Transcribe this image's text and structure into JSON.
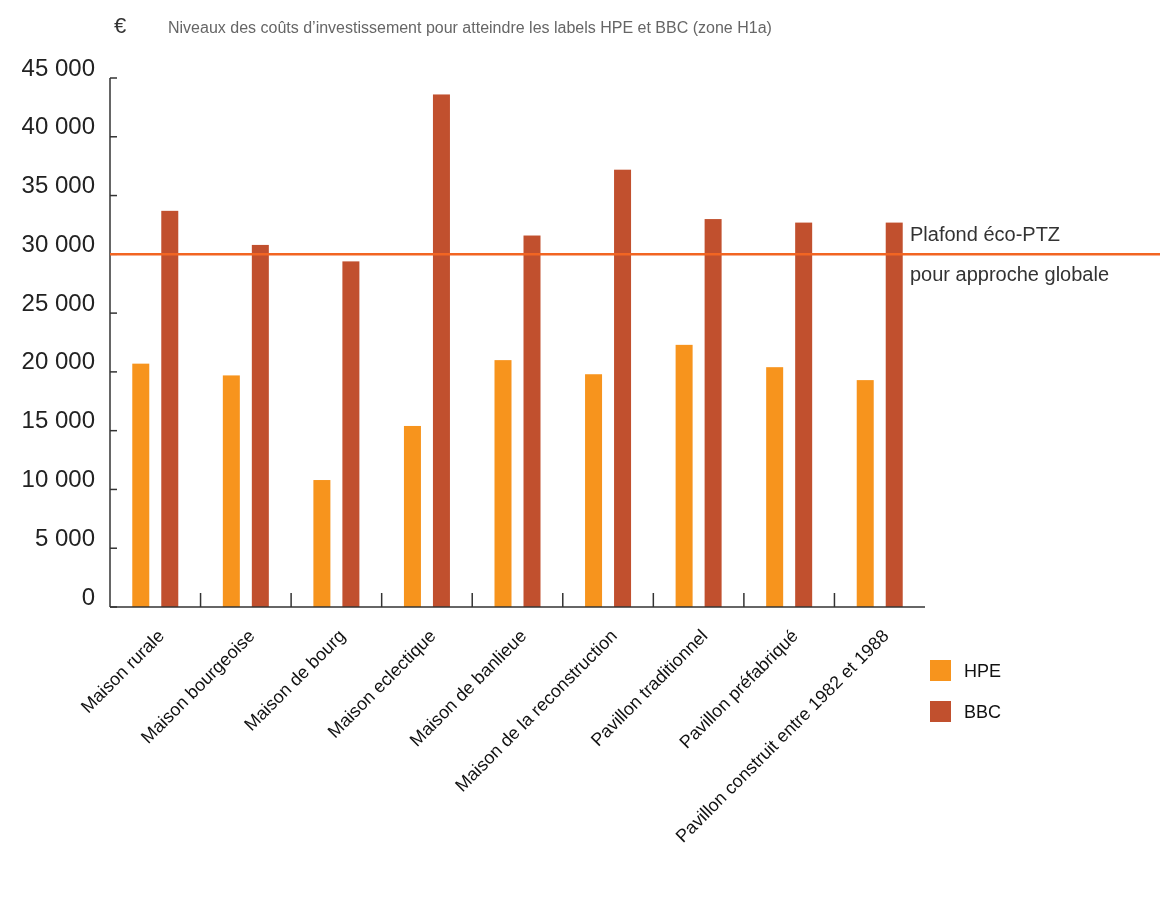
{
  "chart_data": {
    "type": "bar",
    "title": "Niveaux des coûts d’investissement pour atteindre les labels HPE et BBC (zone H1a)",
    "ylabel": "€",
    "categories": [
      "Maison rurale",
      "Maison bourgeoise",
      "Maison de bourg",
      "Maison eclectique",
      "Maison de banlieue",
      "Maison de la reconstruction",
      "Pavillon traditionnel",
      "Pavillon préfabriqué",
      "Pavillon construit entre 1982 et 1988"
    ],
    "series": [
      {
        "name": "HPE",
        "color": "#f7941d",
        "values": [
          20700,
          19700,
          10800,
          15400,
          21000,
          19800,
          22300,
          20400,
          19300
        ]
      },
      {
        "name": "BBC",
        "color": "#c1502e",
        "values": [
          33700,
          30800,
          29400,
          43600,
          31600,
          37200,
          33000,
          32700,
          32700
        ]
      }
    ],
    "ylim": [
      0,
      45000
    ],
    "yticks": [
      {
        "value": 0,
        "label": "0"
      },
      {
        "value": 5000,
        "label": "5 000"
      },
      {
        "value": 10000,
        "label": "10 000"
      },
      {
        "value": 15000,
        "label": "15 000"
      },
      {
        "value": 20000,
        "label": "20 000"
      },
      {
        "value": 25000,
        "label": "25 000"
      },
      {
        "value": 30000,
        "label": "30 000"
      },
      {
        "value": 35000,
        "label": "35 000"
      },
      {
        "value": 40000,
        "label": "40 000"
      },
      {
        "value": 45000,
        "label": "45 000"
      }
    ],
    "ref_lines": [
      {
        "axis": "y",
        "value": 30000,
        "label": "Plafond éco-PTZ\npour approche globale",
        "color": "#f26522"
      }
    ],
    "grid": false,
    "legend": "bottom right"
  }
}
